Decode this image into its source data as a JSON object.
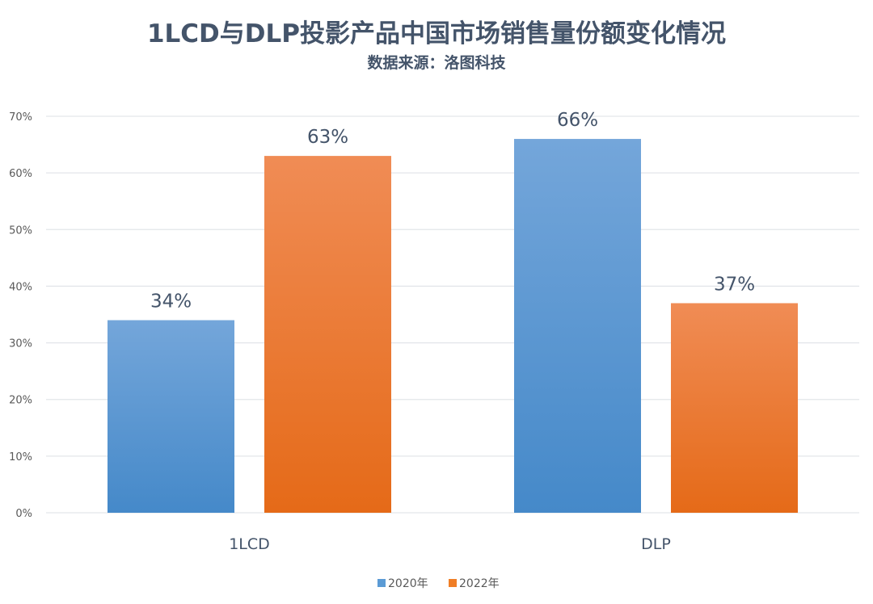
{
  "chart_data": {
    "type": "bar",
    "title": "1LCD与DLP投影产品中国市场销售量份额变化情况",
    "subtitle": "数据来源：洛图科技",
    "xlabel": "",
    "ylabel": "",
    "categories": [
      "1LCD",
      "DLP"
    ],
    "series": [
      {
        "name": "2020年",
        "color": "#5B9BD5",
        "color_top": "#74A6DA",
        "color_bottom": "#4589C9",
        "values": [
          34,
          66
        ],
        "labels": [
          "34%",
          "66%"
        ]
      },
      {
        "name": "2022年",
        "color": "#F07E26",
        "color_top": "#F08C55",
        "color_bottom": "#E56A18",
        "values": [
          63,
          37
        ],
        "labels": [
          "63%",
          "37%"
        ]
      }
    ],
    "ylim": [
      0,
      70
    ],
    "yticks": [
      0,
      10,
      20,
      30,
      40,
      50,
      60,
      70
    ],
    "ytick_labels": [
      "0%",
      "10%",
      "20%",
      "30%",
      "40%",
      "50%",
      "60%",
      "70%"
    ],
    "grid": true,
    "legend_position": "bottom"
  }
}
